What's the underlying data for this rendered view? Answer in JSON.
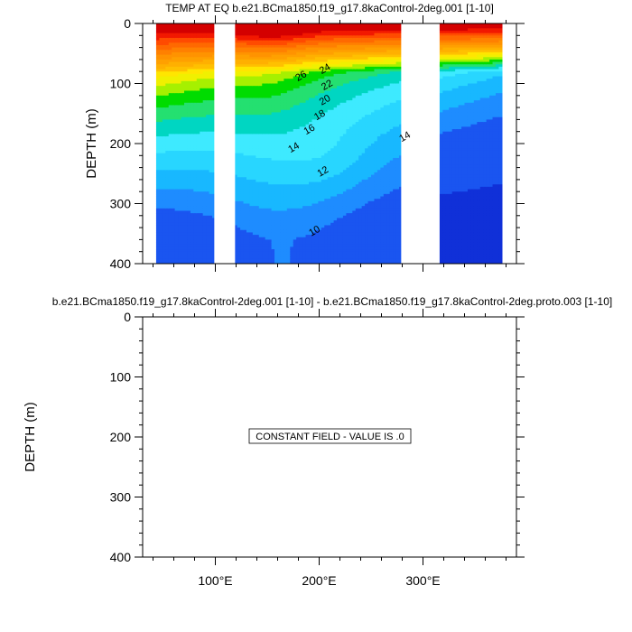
{
  "chart_data": [
    {
      "type": "heatmap",
      "subtype": "filled-contour",
      "title": "TEMP AT EQ b.e21.BCma1850.f19_g17.8kaControl-2deg.001 [1-10]",
      "xlabel": "",
      "ylabel": "DEPTH (m)",
      "xlim": [
        30,
        390
      ],
      "ylim": [
        400,
        0
      ],
      "x_ticks": [
        {
          "value": 100,
          "label": "100°E"
        },
        {
          "value": 200,
          "label": "200°E"
        },
        {
          "value": 300,
          "label": "300°E"
        }
      ],
      "y_ticks": [
        {
          "value": 0,
          "label": "0"
        },
        {
          "value": 100,
          "label": "100"
        },
        {
          "value": 200,
          "label": "200"
        },
        {
          "value": 300,
          "label": "300"
        },
        {
          "value": 400,
          "label": "400"
        }
      ],
      "data_range_x": [
        43,
        376
      ],
      "land_gaps_x": [
        [
          99,
          119
        ],
        [
          279,
          316
        ]
      ],
      "contour_levels": [
        8,
        10,
        11,
        12,
        13,
        14,
        15,
        16,
        17,
        18,
        19,
        20,
        21,
        22,
        23,
        24,
        25,
        26,
        27,
        28,
        29
      ],
      "contour_labels": [
        {
          "text": "26",
          "x": 184,
          "depth": 92
        },
        {
          "text": "24",
          "x": 207,
          "depth": 80
        },
        {
          "text": "22",
          "x": 209,
          "depth": 107
        },
        {
          "text": "20",
          "x": 207,
          "depth": 132
        },
        {
          "text": "18",
          "x": 202,
          "depth": 157
        },
        {
          "text": "16",
          "x": 192,
          "depth": 181
        },
        {
          "text": "14",
          "x": 177,
          "depth": 211
        },
        {
          "text": "14",
          "x": 284,
          "depth": 193
        },
        {
          "text": "12",
          "x": 205,
          "depth": 251
        },
        {
          "text": "10",
          "x": 197,
          "depth": 350
        }
      ]
    },
    {
      "type": "heatmap",
      "subtype": "difference",
      "title": "b.e21.BCma1850.f19_g17.8kaControl-2deg.001 [1-10] - b.e21.BCma1850.f19_g17.8kaControl-2deg.proto.003 [1-10]",
      "xlabel": "",
      "ylabel": "DEPTH (m)",
      "xlim": [
        30,
        390
      ],
      "ylim": [
        400,
        0
      ],
      "x_ticks": [
        {
          "value": 100,
          "label": "100°E"
        },
        {
          "value": 200,
          "label": "200°E"
        },
        {
          "value": 300,
          "label": "300°E"
        }
      ],
      "y_ticks": [
        {
          "value": 0,
          "label": "0"
        },
        {
          "value": 100,
          "label": "100"
        },
        {
          "value": 200,
          "label": "200"
        },
        {
          "value": 300,
          "label": "300"
        },
        {
          "value": 400,
          "label": "400"
        }
      ],
      "note": "CONSTANT FIELD - VALUE IS .0"
    }
  ]
}
